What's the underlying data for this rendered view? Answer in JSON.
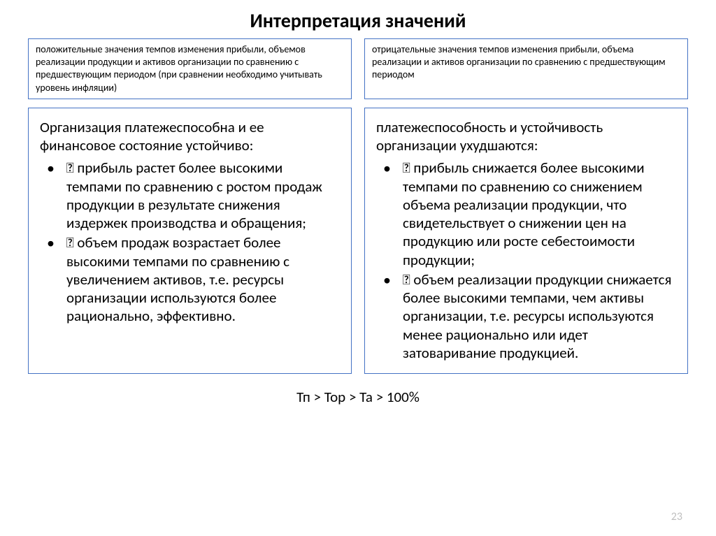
{
  "title": "Интерпретация значений",
  "topLeft": "положительные значения темпов изменения прибыли, объемов реализации продукции и активов организации по сравнению с предшествующим периодом (при сравнении необходимо учитывать уровень инфляции)",
  "topRight": "отрицательные значения темпов изменения прибыли, объема реализации и активов организации по сравнению с предшествующим периодом",
  "left": {
    "heading": "Организация платежеспособна и ее финансовое состояние устойчиво:",
    "bullets": [
      " прибыль растет более высокими темпами по сравнению с ростом продаж продукции в результате снижения издержек производства и обращения;",
      " объем продаж возрастает более высокими темпами по сравнению с увеличением активов, т.е. ресурсы организации используются более рационально, эффективно."
    ]
  },
  "right": {
    "heading": "платежеспособность и устойчивость организации ухудшаются:",
    "bullets": [
      " прибыль снижается более высокими темпами по сравнению со снижением объема реализации продукции, что свидетельствует о снижении цен на продукцию или росте себестоимости продукции;",
      " объем реализации продукции снижается более высокими темпами, чем активы организации, т.е. ресурсы используются менее рационально или идет затоваривание продукцией."
    ]
  },
  "formula": "Тп > Тор > Та > 100%",
  "pageNumber": "23",
  "colors": {
    "border": "#4472c4",
    "text": "#000000",
    "pageNum": "#bfbfbf",
    "background": "#ffffff"
  }
}
